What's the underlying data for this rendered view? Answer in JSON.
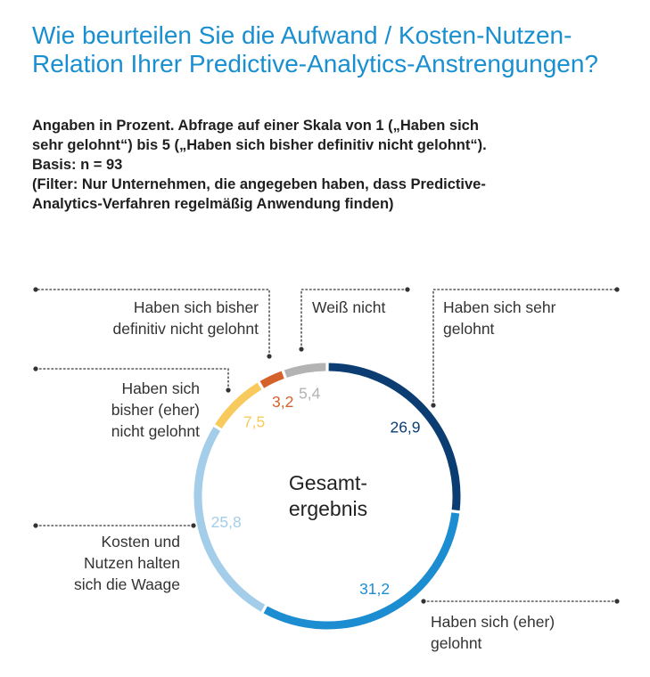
{
  "title": "Wie beurteilen Sie die Aufwand / Kosten-Nutzen-Relation Ihrer Predictive-Analytics-Anstrengungen?",
  "subtitle": [
    "Angaben in Prozent. Abfrage auf einer Skala von 1 („Haben sich",
    "sehr gelohnt“) bis 5 („Haben sich bisher definitiv nicht gelohnt“).",
    "Basis: n = 93",
    "(Filter: Nur Unternehmen, die angegeben haben, dass Predictive-",
    "Analytics-Verfahren regelmäßig Anwendung finden)"
  ],
  "chart_data": {
    "type": "pie",
    "variant": "donut",
    "center_label": [
      "Gesamt-",
      "ergebnis"
    ],
    "slices": [
      {
        "label": [
          "Haben sich sehr",
          "gelohnt"
        ],
        "value": 26.9,
        "value_text": "26,9",
        "color": "#0b3d73"
      },
      {
        "label": [
          "Haben sich (eher)",
          "gelohnt"
        ],
        "value": 31.2,
        "value_text": "31,2",
        "color": "#1d8dd2"
      },
      {
        "label": [
          "Kosten und",
          "Nutzen halten",
          "sich die Waage"
        ],
        "value": 25.8,
        "value_text": "25,8",
        "color": "#a3cde9"
      },
      {
        "label": [
          "Haben sich",
          "bisher (eher)",
          "nicht gelohnt"
        ],
        "value": 7.5,
        "value_text": "7,5",
        "color": "#f8c95c"
      },
      {
        "label": [
          "Haben sich bisher",
          "definitiv nicht gelohnt"
        ],
        "value": 3.2,
        "value_text": "3,2",
        "color": "#d5622a"
      },
      {
        "label": [
          "Weiß nicht"
        ],
        "value": 5.4,
        "value_text": "5,4",
        "color": "#b3b3b3"
      }
    ]
  }
}
